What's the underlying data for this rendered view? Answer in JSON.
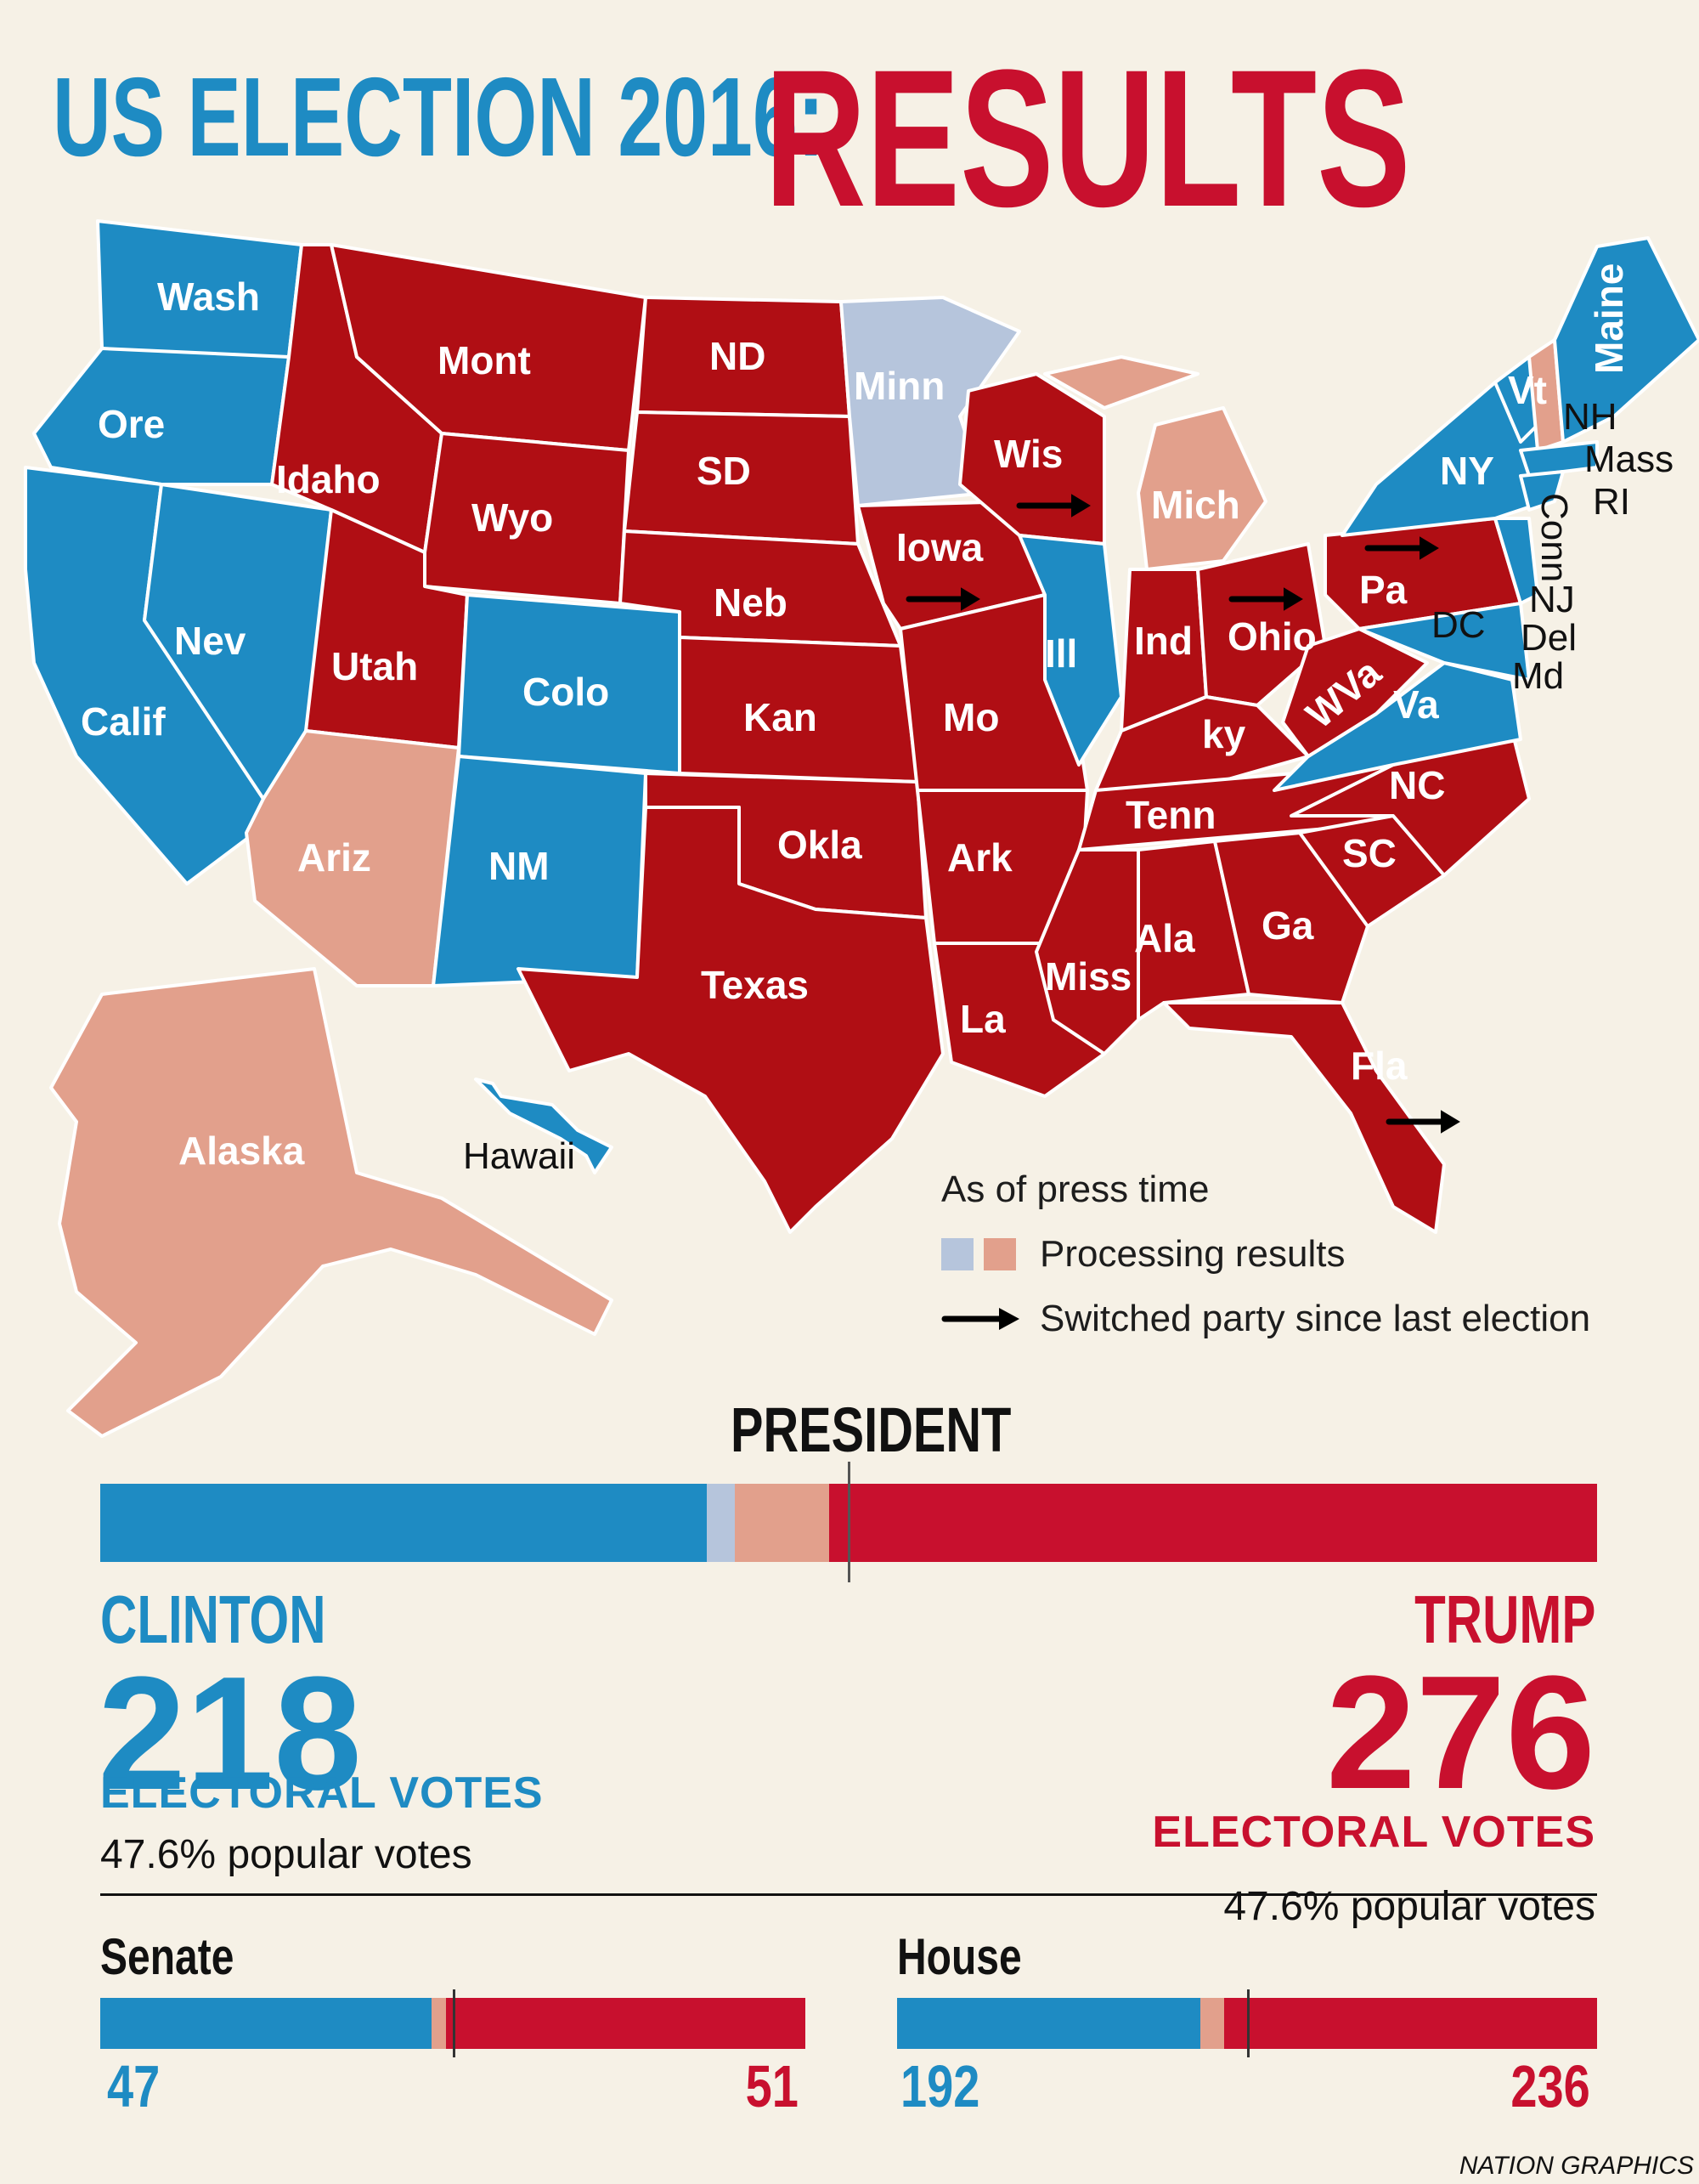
{
  "title": {
    "prefix": "US ELECTION 2016:",
    "main": "RESULTS"
  },
  "colors": {
    "democrat": "#1e8bc3",
    "republican": "#b00e14",
    "trump_red": "#c8102e",
    "processing_dem": "#b6c5dc",
    "processing_rep": "#e2a08c",
    "background": "#f6f1e6"
  },
  "map": {
    "state_labels": {
      "wash": "Wash",
      "ore": "Ore",
      "calif": "Calif",
      "nev": "Nev",
      "idaho": "Idaho",
      "mont": "Mont",
      "wyo": "Wyo",
      "utah": "Utah",
      "colo": "Colo",
      "ariz": "Ariz",
      "nm": "NM",
      "nd": "ND",
      "sd": "SD",
      "neb": "Neb",
      "kan": "Kan",
      "okla": "Okla",
      "texas": "Texas",
      "minn": "Minn",
      "iowa": "Iowa",
      "mo": "Mo",
      "ark": "Ark",
      "la": "La",
      "wis": "Wis",
      "ill": "Ill",
      "mich": "Mich",
      "ind": "Ind",
      "ohio": "Ohio",
      "ky": "ky",
      "tenn": "Tenn",
      "miss": "Miss",
      "ala": "Ala",
      "ga": "Ga",
      "fla": "Fla",
      "sc": "SC",
      "nc": "NC",
      "va": "Va",
      "wva": "WVa",
      "pa": "Pa",
      "ny": "NY",
      "vt": "Vt",
      "maine": "Maine",
      "nh": "NH",
      "mass": "Mass",
      "ri": "RI",
      "conn": "Conn",
      "nj": "NJ",
      "del": "Del",
      "md": "Md",
      "dc": "DC",
      "alaska": "Alaska",
      "hawaii": "Hawaii"
    }
  },
  "legend": {
    "heading": "As of press time",
    "processing": "Processing results",
    "switched": "Switched party since last election"
  },
  "president": {
    "title": "PRESIDENT",
    "bar": {
      "clinton": 218,
      "processing_dem": 10,
      "processing_rep": 34,
      "trump": 276
    },
    "clinton": {
      "name": "CLINTON",
      "electoral_votes": "218",
      "ev_label": "ELECTORAL VOTES",
      "popular": "47.6% popular votes"
    },
    "trump": {
      "name": "TRUMP",
      "electoral_votes": "276",
      "ev_label": "ELECTORAL VOTES",
      "popular": "47.6% popular votes"
    }
  },
  "senate": {
    "title": "Senate",
    "dem": 47,
    "processing": 2,
    "rep": 51,
    "dem_label": "47",
    "rep_label": "51"
  },
  "house": {
    "title": "House",
    "dem": 192,
    "processing": 15,
    "rep": 236,
    "dem_label": "192",
    "rep_label": "236"
  },
  "credit": "NATION GRAPHICS"
}
